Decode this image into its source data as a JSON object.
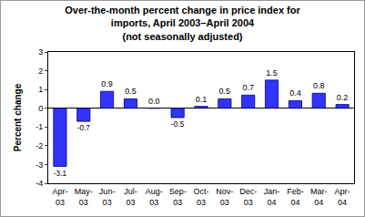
{
  "chart_data": {
    "type": "bar",
    "title": "Over-the-month percent change in price index for\nimports, April 2003–April 2004\n(not seasonally adjusted)",
    "y_label": "Percent change",
    "categories": [
      "Apr-03",
      "May-03",
      "Jun-03",
      "Jul-03",
      "Aug-03",
      "Sep-03",
      "Oct-03",
      "Nov-03",
      "Dec-03",
      "Jan-04",
      "Feb-04",
      "Mar-04",
      "Apr-04"
    ],
    "values": [
      -3.1,
      -0.7,
      0.9,
      0.5,
      0.0,
      -0.5,
      0.1,
      0.5,
      0.7,
      1.5,
      0.4,
      0.8,
      0.2
    ],
    "value_labels": [
      "-3.1",
      "-0.7",
      "0.9",
      "0.5",
      "0.0",
      "-0.5",
      "0.1",
      "0.5",
      "0.7",
      "1.5",
      "0.4",
      "0.8",
      "0.2"
    ],
    "color": "#3333ff",
    "ylim": [
      -4,
      3
    ],
    "yticks": [
      -4,
      -3,
      -2,
      -1,
      0,
      1,
      2,
      3
    ],
    "grid": false,
    "data_labels": true
  }
}
